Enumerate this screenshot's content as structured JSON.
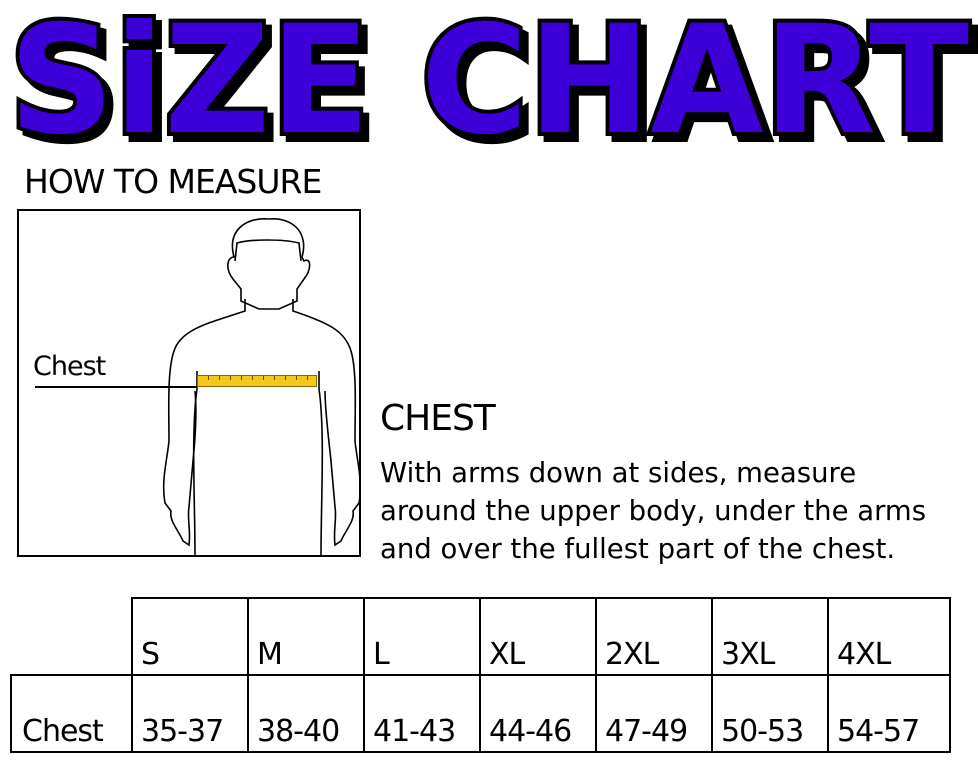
{
  "title": "SiZE CHART",
  "colors": {
    "title_fill": "#3d00d8",
    "title_outline": "#000000",
    "tape": "#f2c81a"
  },
  "how_to_measure": {
    "heading": "HOW TO MEASURE",
    "figure_label": "Chest"
  },
  "instructions": {
    "heading": "CHEST",
    "lines": [
      "With arms down at sides, measure",
      "around the upper body, under the arms",
      "and over the fullest part of the chest."
    ]
  },
  "table": {
    "sizes": [
      "S",
      "M",
      "L",
      "XL",
      "2XL",
      "3XL",
      "4XL"
    ],
    "rows": [
      {
        "label": "Chest",
        "values": [
          "35-37",
          "38-40",
          "41-43",
          "44-46",
          "47-49",
          "50-53",
          "54-57"
        ]
      }
    ]
  }
}
